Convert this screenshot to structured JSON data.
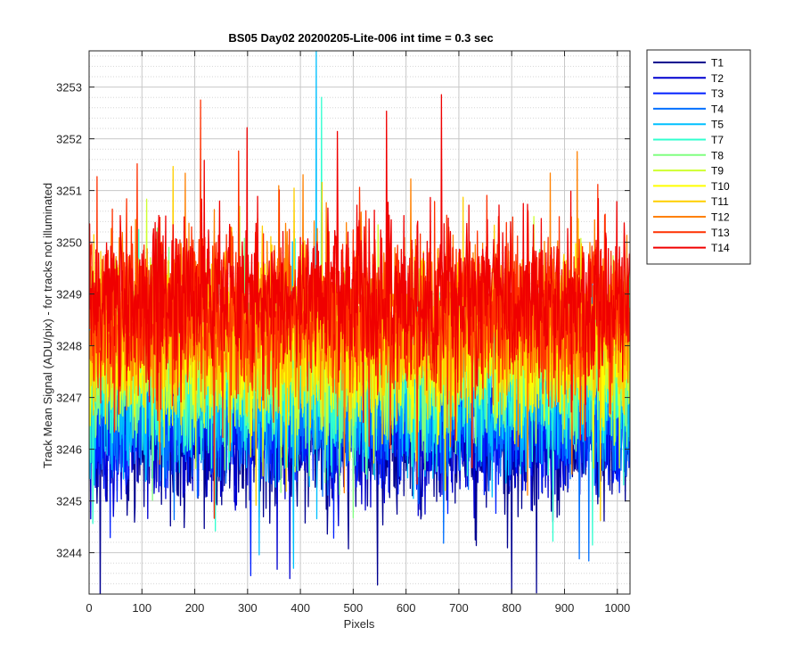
{
  "chart_data": {
    "type": "line",
    "title": "BS05 Day02 20200205-Lite-006 int time = 0.3 sec",
    "xlabel": "Pixels",
    "ylabel": "Track Mean Signal (ADU/pix) - for tracks not illuminated",
    "xlim": [
      0,
      1024
    ],
    "ylim": [
      3243.2,
      3253.7
    ],
    "x_ticks": [
      0,
      100,
      200,
      300,
      400,
      500,
      600,
      700,
      800,
      900,
      1000
    ],
    "y_ticks": [
      3244,
      3245,
      3246,
      3247,
      3248,
      3249,
      3250,
      3251,
      3252,
      3253
    ],
    "grid": true,
    "minor_grid_y": true,
    "legend_position": "outside-top-right",
    "n_points": 1024,
    "series": [
      {
        "name": "T1",
        "color": "#00008F",
        "mean": 3246.2,
        "amplitude": 0.75,
        "min": 3243.2,
        "min_at": 800
      },
      {
        "name": "T2",
        "color": "#0000CF",
        "mean": 3246.4,
        "amplitude": 0.7,
        "min": 3243.5,
        "min_at": 380
      },
      {
        "name": "T3",
        "color": "#0020FF",
        "mean": 3246.6,
        "amplitude": 0.7
      },
      {
        "name": "T4",
        "color": "#0070FF",
        "mean": 3246.8,
        "amplitude": 0.72
      },
      {
        "name": "T5",
        "color": "#00C0FF",
        "mean": 3247.2,
        "amplitude": 0.85,
        "max": 3253.7,
        "max_at": 430
      },
      {
        "name": "T7",
        "color": "#30FFCF",
        "mean": 3247.5,
        "amplitude": 0.85,
        "max": 3252.8,
        "max_at": 440
      },
      {
        "name": "T8",
        "color": "#80FF80",
        "mean": 3247.6,
        "amplitude": 0.75
      },
      {
        "name": "T9",
        "color": "#CFFF30",
        "mean": 3247.8,
        "amplitude": 0.72
      },
      {
        "name": "T10",
        "color": "#FFFF00",
        "mean": 3248.0,
        "amplitude": 0.75
      },
      {
        "name": "T11",
        "color": "#FFCF00",
        "mean": 3248.2,
        "amplitude": 0.8
      },
      {
        "name": "T12",
        "color": "#FF8000",
        "mean": 3248.5,
        "amplitude": 0.85
      },
      {
        "name": "T13",
        "color": "#FF3000",
        "mean": 3248.7,
        "amplitude": 0.85
      },
      {
        "name": "T14",
        "color": "#F00000",
        "mean": 3248.9,
        "amplitude": 0.8
      }
    ]
  }
}
